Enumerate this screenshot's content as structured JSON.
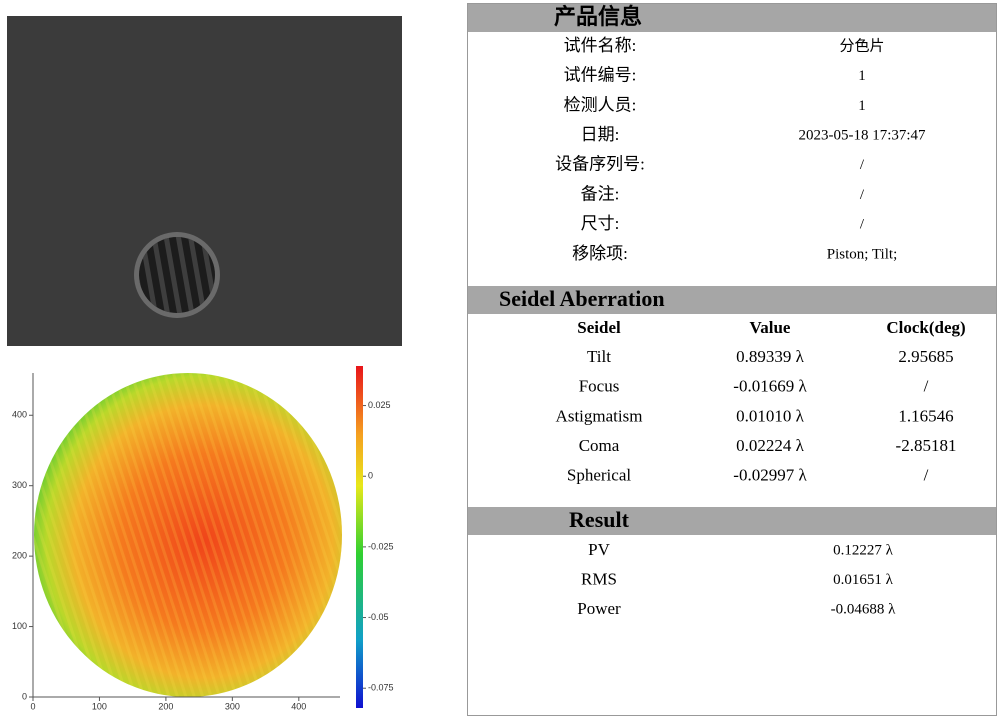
{
  "product_info": {
    "title": "产品信息",
    "rows": [
      [
        "试件名称:",
        "分色片"
      ],
      [
        "试件编号:",
        "1"
      ],
      [
        "检测人员:",
        "1"
      ],
      [
        "日期:",
        "2023-05-18 17:37:47"
      ],
      [
        "设备序列号:",
        "/"
      ],
      [
        "备注:",
        "/"
      ],
      [
        "尺寸:",
        "/"
      ],
      [
        "移除项:",
        "Piston; Tilt;"
      ]
    ]
  },
  "seidel": {
    "title": "Seidel Aberration",
    "header": [
      "Seidel",
      "Value",
      "Clock(deg)"
    ],
    "rows": [
      [
        "Tilt",
        "0.89339 λ",
        "2.95685"
      ],
      [
        "Focus",
        "-0.01669 λ",
        "/"
      ],
      [
        "Astigmatism",
        "0.01010 λ",
        "1.16546"
      ],
      [
        "Coma",
        "0.02224 λ",
        "-2.85181"
      ],
      [
        "Spherical",
        "-0.02997 λ",
        "/"
      ]
    ]
  },
  "result": {
    "title": "Result",
    "rows": [
      [
        "PV",
        "0.12227 λ"
      ],
      [
        "RMS",
        "0.01651 λ"
      ],
      [
        "Power",
        "-0.04688 λ"
      ]
    ]
  },
  "surface_map": {
    "xlim": [
      0,
      462
    ],
    "ylim": [
      0,
      460
    ],
    "xticks": [
      0,
      100,
      200,
      300,
      400
    ],
    "yticks": [
      0,
      100,
      200,
      300,
      400
    ],
    "colorbar_lim": [
      -0.082,
      0.039
    ],
    "colorbar_ticks": [
      0.025,
      0,
      -0.025,
      -0.05,
      -0.075
    ]
  }
}
